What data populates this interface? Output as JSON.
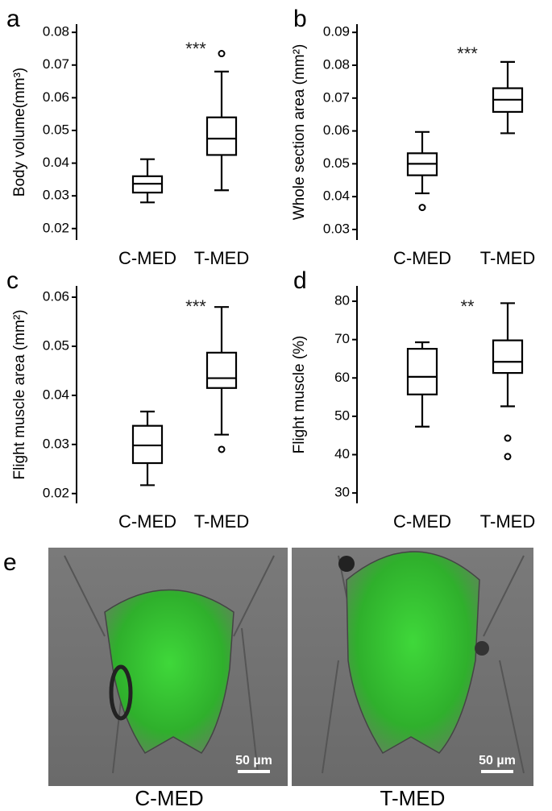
{
  "chart_data": [
    {
      "type": "box",
      "panel_label": "a",
      "ylabel": "Body volume(mm³)",
      "annotation": "***",
      "color": "#000000",
      "categories": [
        "C-MED",
        "T-MED"
      ],
      "boxes": [
        {
          "whislo": 0.028,
          "q1": 0.031,
          "med": 0.0337,
          "q3": 0.036,
          "whishi": 0.0412,
          "fliers": []
        },
        {
          "whislo": 0.0317,
          "q1": 0.0425,
          "med": 0.0475,
          "q3": 0.054,
          "whishi": 0.068,
          "fliers": [
            0.0735
          ]
        }
      ],
      "ylim": [
        0.0165,
        0.0825
      ],
      "yticks": [
        0.02,
        0.03,
        0.04,
        0.05,
        0.06,
        0.07,
        0.08
      ]
    },
    {
      "type": "box",
      "panel_label": "b",
      "ylabel": "Whole section area (mm²)",
      "annotation": "***",
      "color": "#000000",
      "categories": [
        "C-MED",
        "T-MED"
      ],
      "boxes": [
        {
          "whislo": 0.041,
          "q1": 0.0465,
          "med": 0.05,
          "q3": 0.0532,
          "whishi": 0.0597,
          "fliers": [
            0.0367
          ]
        },
        {
          "whislo": 0.0593,
          "q1": 0.0658,
          "med": 0.0695,
          "q3": 0.073,
          "whishi": 0.081,
          "fliers": []
        }
      ],
      "ylim": [
        0.0268,
        0.0925
      ],
      "yticks": [
        0.03,
        0.04,
        0.05,
        0.06,
        0.07,
        0.08,
        0.09
      ]
    },
    {
      "type": "box",
      "panel_label": "c",
      "ylabel": "Flight muscle area (mm²)",
      "annotation": "***",
      "color": "#000000",
      "categories": [
        "C-MED",
        "T-MED"
      ],
      "boxes": [
        {
          "whislo": 0.0217,
          "q1": 0.0262,
          "med": 0.0298,
          "q3": 0.0338,
          "whishi": 0.0367,
          "fliers": []
        },
        {
          "whislo": 0.032,
          "q1": 0.0415,
          "med": 0.0435,
          "q3": 0.0487,
          "whishi": 0.058,
          "fliers": [
            0.029
          ]
        }
      ],
      "ylim": [
        0.018,
        0.0623
      ],
      "yticks": [
        0.02,
        0.03,
        0.04,
        0.05,
        0.06
      ]
    },
    {
      "type": "box",
      "panel_label": "d",
      "ylabel": "Flight muscle (%)",
      "annotation": "**",
      "color": "#000000",
      "categories": [
        "C-MED",
        "T-MED"
      ],
      "boxes": [
        {
          "whislo": 47.3,
          "q1": 55.7,
          "med": 60.3,
          "q3": 67.6,
          "whishi": 69.3,
          "fliers": []
        },
        {
          "whislo": 52.6,
          "q1": 61.3,
          "med": 64.2,
          "q3": 69.8,
          "whishi": 79.5,
          "fliers": [
            44.3,
            39.5
          ]
        }
      ],
      "ylim": [
        27.3,
        84
      ],
      "yticks": [
        30,
        40,
        50,
        60,
        70,
        80
      ]
    }
  ],
  "panel_e": {
    "label": "e",
    "images": [
      {
        "caption": "C-MED",
        "scale_bar": "50 µm"
      },
      {
        "caption": "T-MED",
        "scale_bar": "50 µm"
      }
    ]
  }
}
